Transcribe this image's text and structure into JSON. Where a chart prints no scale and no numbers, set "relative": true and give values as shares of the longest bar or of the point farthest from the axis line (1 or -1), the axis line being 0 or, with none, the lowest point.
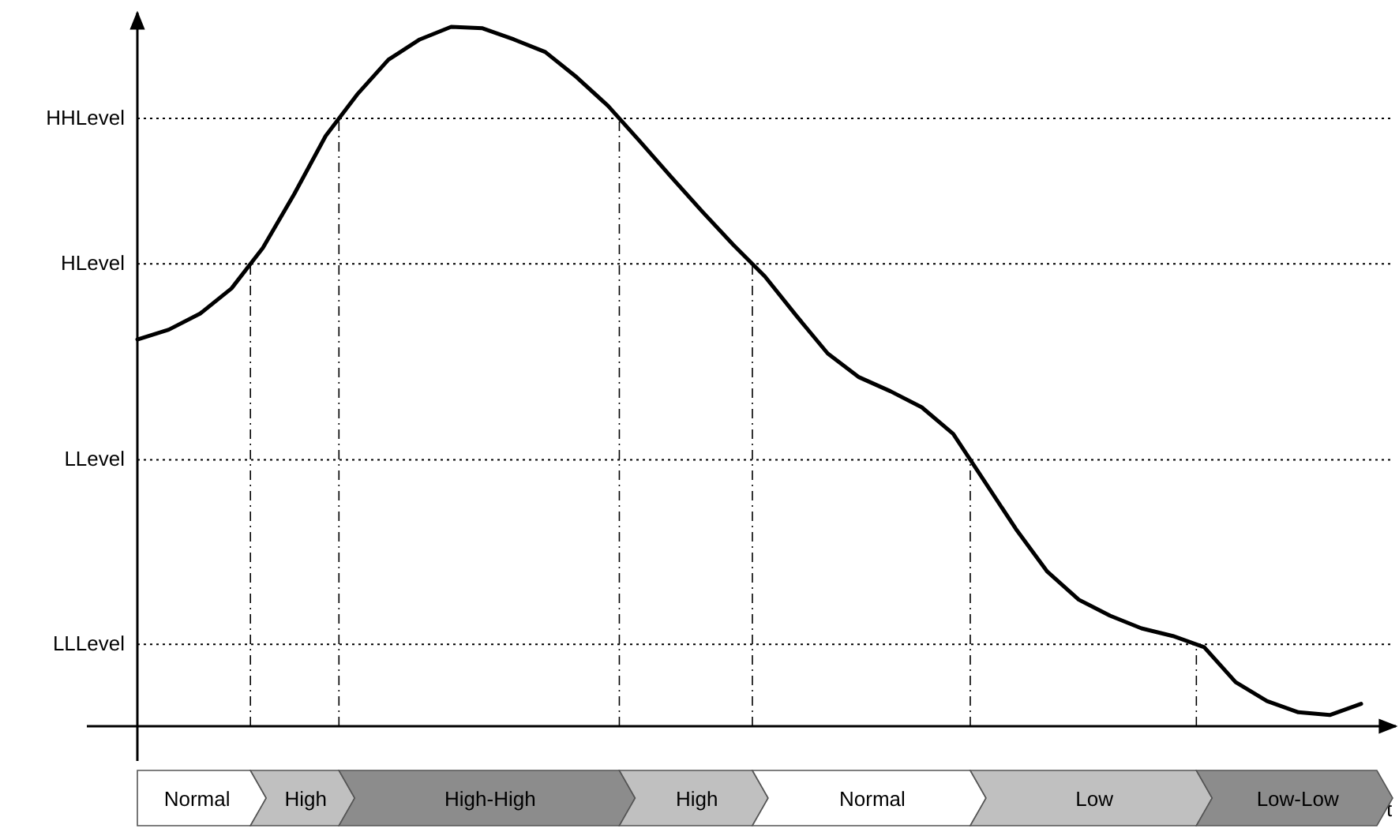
{
  "chart_data": {
    "type": "line",
    "relative": true,
    "xlabel": "t",
    "line_style": "solid",
    "categories": [
      null,
      null,
      null,
      null,
      null,
      null,
      null,
      null,
      null,
      null,
      null,
      null,
      null,
      null,
      null,
      null,
      null,
      null,
      null,
      null,
      null,
      null,
      null,
      null,
      null,
      null,
      null,
      null,
      null,
      null,
      null,
      null,
      null,
      null,
      null,
      null,
      null,
      null,
      null,
      null
    ],
    "series": [
      {
        "color": "#000000",
        "values": [
          0.553,
          0.567,
          0.59,
          0.626,
          0.684,
          0.761,
          0.844,
          0.903,
          0.953,
          0.982,
          1,
          0.998,
          0.982,
          0.964,
          0.928,
          0.887,
          0.837,
          0.786,
          0.736,
          0.688,
          0.643,
          0.587,
          0.533,
          0.499,
          0.479,
          0.456,
          0.418,
          0.35,
          0.282,
          0.221,
          0.181,
          0.158,
          0.14,
          0.129,
          0.113,
          0.063,
          0.036,
          0.02,
          0.016,
          0.032
        ]
      }
    ],
    "ref_lines": [
      {
        "axis": "y",
        "value": 0.869,
        "label": "HHLevel",
        "line_style": "dotted",
        "color": "#000000"
      },
      {
        "axis": "y",
        "value": 0.661,
        "label": "HLevel",
        "line_style": "dotted",
        "color": "#000000"
      },
      {
        "axis": "y",
        "value": 0.381,
        "label": "LLevel",
        "line_style": "dotted",
        "color": "#000000"
      },
      {
        "axis": "y",
        "value": 0.117,
        "label": "LLLevel",
        "line_style": "dotted",
        "color": "#000000"
      }
    ],
    "annotations": [
      "Normal",
      "High",
      "High-High",
      "High",
      "Normal",
      "Low",
      "Low-Low"
    ]
  }
}
